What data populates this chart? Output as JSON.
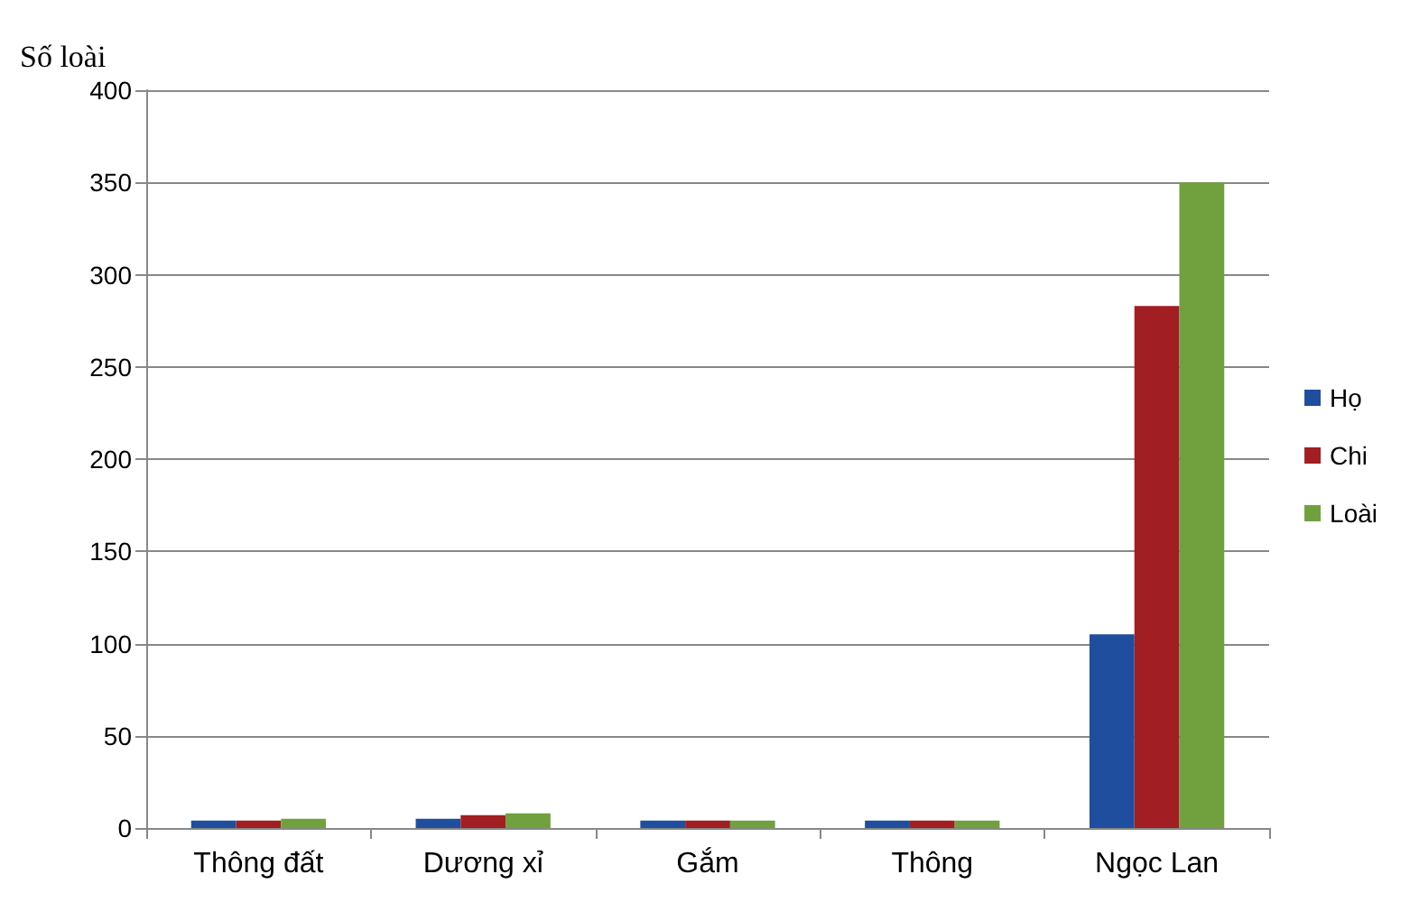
{
  "chart_data": {
    "type": "bar",
    "ylabel": "Số loài",
    "categories": [
      "Thông đất",
      "Dương xỉ",
      "Gắm",
      "Thông",
      "Ngọc Lan"
    ],
    "series": [
      {
        "name": "Họ",
        "color": "#1f4e9e",
        "values": [
          4,
          5,
          4,
          4,
          105
        ]
      },
      {
        "name": "Chi",
        "color": "#a11e22",
        "values": [
          4,
          7,
          4,
          4,
          283
        ]
      },
      {
        "name": "Loài",
        "color": "#70a13e",
        "values": [
          5,
          8,
          4,
          4,
          350
        ]
      }
    ],
    "ylim": [
      0,
      400
    ],
    "yticks": [
      0,
      50,
      100,
      150,
      200,
      250,
      300,
      350,
      400
    ],
    "grid": "y",
    "legend": "right"
  }
}
